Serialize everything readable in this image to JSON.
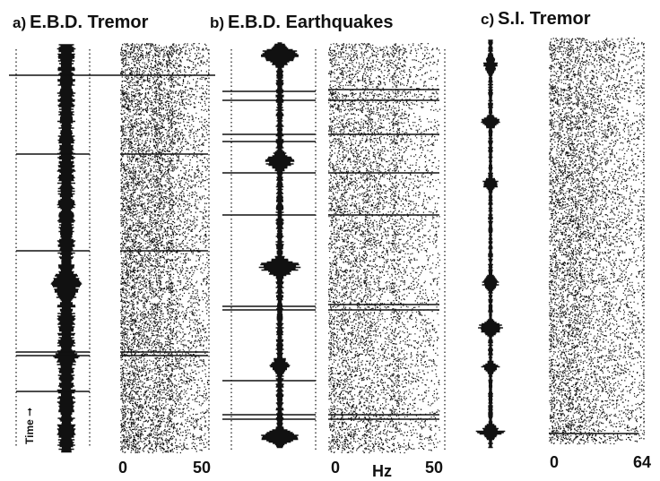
{
  "panels": [
    {
      "letter": "a)",
      "title": "E.B.D. Tremor",
      "x_ticks": [
        "0",
        "50"
      ]
    },
    {
      "letter": "b)",
      "title": "E.B.D. Earthquakes",
      "x_ticks": [
        "0",
        "50"
      ]
    },
    {
      "letter": "c)",
      "title": "S.I. Tremor",
      "x_ticks": [
        "0",
        "64"
      ]
    }
  ],
  "x_unit_label": "Hz",
  "time_label": "Time",
  "colors": {
    "ink": "#111111",
    "background": "#ffffff"
  }
}
